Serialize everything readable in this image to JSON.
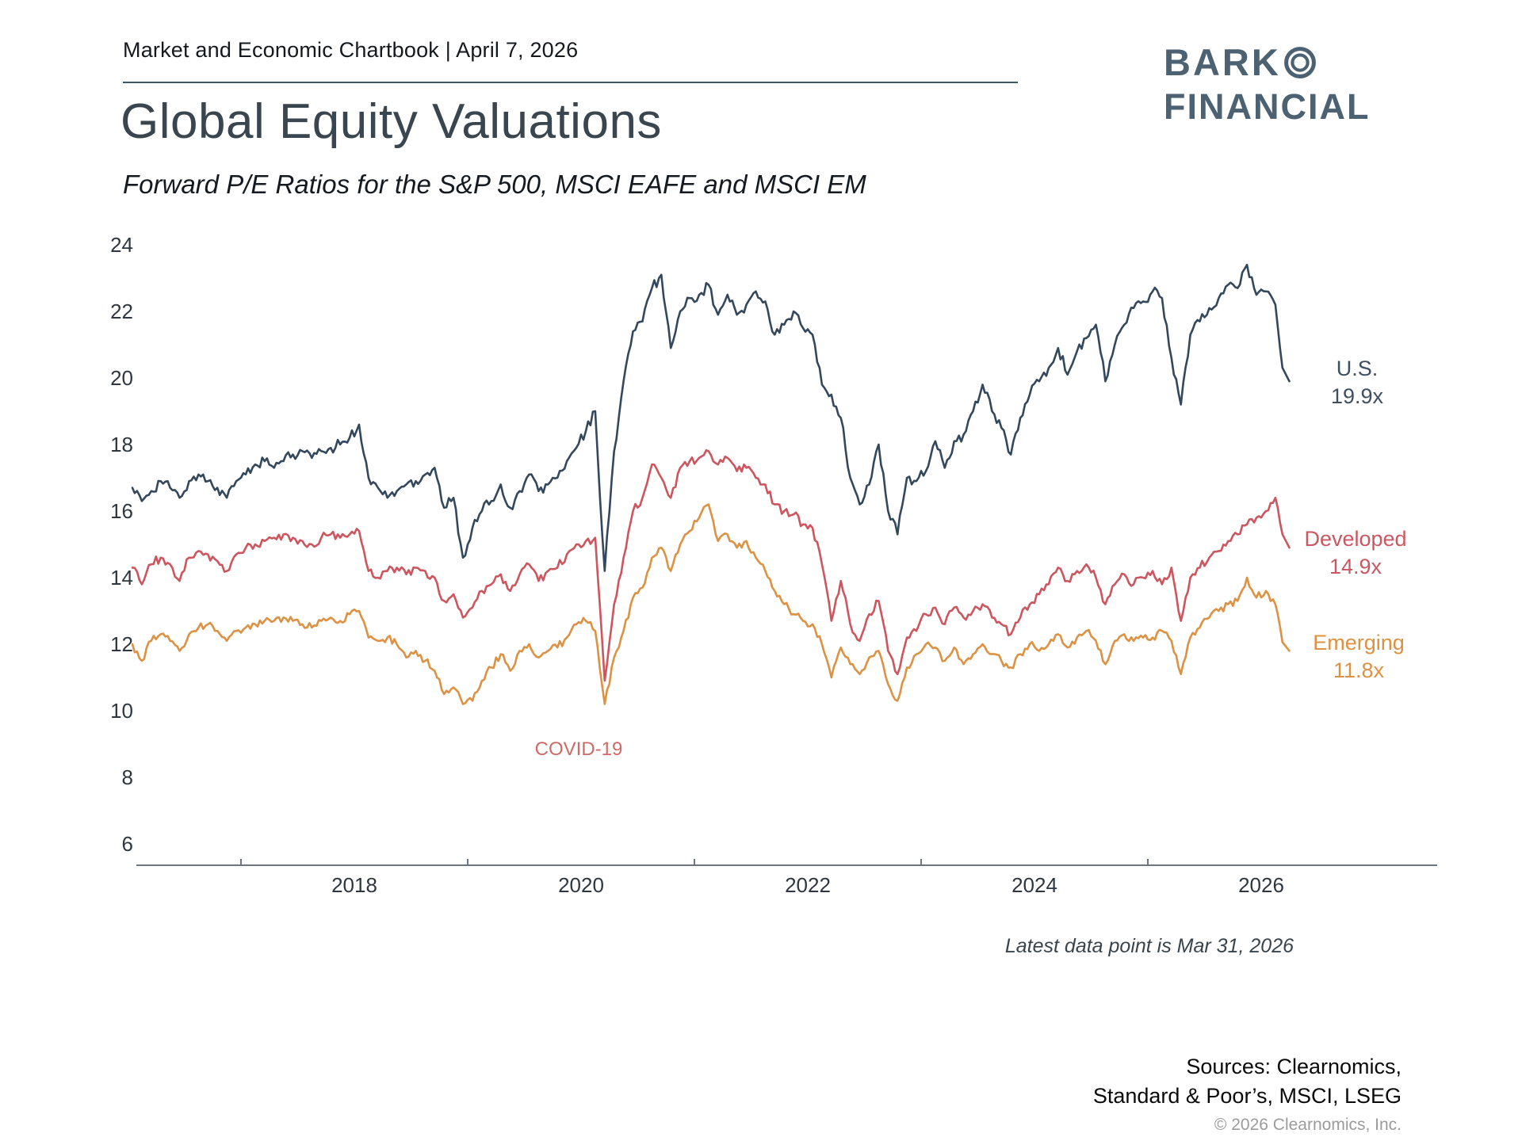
{
  "header": {
    "chartbook_label": "Market and Economic Chartbook | April 7, 2026"
  },
  "logo": {
    "line1": "BARK",
    "line2": "FINANCIAL",
    "color": "#4c6272",
    "ring_icon": "double-circle"
  },
  "title": "Global Equity Valuations",
  "subtitle": "Forward P/E Ratios for the S&P 500, MSCI EAFE and MSCI EM",
  "annotations": {
    "covid": "COVID-19",
    "latest_data": "Latest data point is Mar 31, 2026"
  },
  "footer": {
    "sources_line1": "Sources: Clearnomics,",
    "sources_line2": "Standard & Poor’s, MSCI, LSEG",
    "copyright": "© 2026 Clearnomics, Inc."
  },
  "chart_data": {
    "type": "line",
    "title": "Global Equity Valuations",
    "subtitle": "Forward P/E Ratios for the S&P 500, MSCI EAFE and MSCI EM",
    "x_unit": "monthly, Jan 2016 - Mar 2026",
    "x_start_year": 2016,
    "x_step_months": 1,
    "xticks": [
      2018,
      2020,
      2022,
      2024,
      2026
    ],
    "yticks": [
      24,
      22,
      20,
      18,
      16,
      14,
      12,
      10,
      8,
      6
    ],
    "ylim": [
      6,
      24
    ],
    "grid": false,
    "legend_position": "right-end-labels",
    "axis_color": "#6b7682",
    "series": [
      {
        "name": "U.S.",
        "end_label": "19.9x",
        "latest_value": 19.9,
        "color": "#33485c",
        "values": [
          16.7,
          16.3,
          16.6,
          16.9,
          16.7,
          16.4,
          16.9,
          17.1,
          16.9,
          16.7,
          16.4,
          16.9,
          17.1,
          17.4,
          17.5,
          17.3,
          17.5,
          17.7,
          17.8,
          17.6,
          17.8,
          17.9,
          18.0,
          18.2,
          18.6,
          17.0,
          16.7,
          16.4,
          16.6,
          16.8,
          16.9,
          17.1,
          17.3,
          16.1,
          16.4,
          14.6,
          15.5,
          16.0,
          16.3,
          16.8,
          16.1,
          16.6,
          17.1,
          16.6,
          16.8,
          17.0,
          17.5,
          17.9,
          18.4,
          19.0,
          14.2,
          17.8,
          19.9,
          21.4,
          21.7,
          22.7,
          23.1,
          20.9,
          22.0,
          22.4,
          22.5,
          22.8,
          21.9,
          22.5,
          21.9,
          22.2,
          22.6,
          22.3,
          21.3,
          21.6,
          22.0,
          21.5,
          21.3,
          19.8,
          19.5,
          18.8,
          17.0,
          16.2,
          16.8,
          18.0,
          16.0,
          15.3,
          17.0,
          16.9,
          17.2,
          18.1,
          17.3,
          18.1,
          18.3,
          19.0,
          19.8,
          19.0,
          18.5,
          17.7,
          18.8,
          19.5,
          19.9,
          20.3,
          20.9,
          20.1,
          20.8,
          21.2,
          21.6,
          19.9,
          21.0,
          21.6,
          22.1,
          22.3,
          22.6,
          22.4,
          20.6,
          19.2,
          21.3,
          21.7,
          22.1,
          22.4,
          22.8,
          22.7,
          23.4,
          22.5,
          22.6,
          22.2,
          19.9
        ]
      },
      {
        "name": "Developed",
        "end_label": "14.9x",
        "latest_value": 14.9,
        "color": "#cc555e",
        "values": [
          14.3,
          13.8,
          14.4,
          14.6,
          14.4,
          13.9,
          14.6,
          14.8,
          14.7,
          14.5,
          14.2,
          14.7,
          14.9,
          15.0,
          15.1,
          15.2,
          15.3,
          15.2,
          15.1,
          15.0,
          15.2,
          15.3,
          15.2,
          15.3,
          15.4,
          14.2,
          14.0,
          14.2,
          14.3,
          14.1,
          14.3,
          14.2,
          14.0,
          13.3,
          13.5,
          12.8,
          13.1,
          13.6,
          13.8,
          14.1,
          13.6,
          14.1,
          14.4,
          13.9,
          14.2,
          14.3,
          14.7,
          15.0,
          15.1,
          15.2,
          10.9,
          13.2,
          14.6,
          16.0,
          16.4,
          17.4,
          17.0,
          16.4,
          17.3,
          17.5,
          17.6,
          17.8,
          17.4,
          17.6,
          17.2,
          17.3,
          17.0,
          16.8,
          16.2,
          16.0,
          15.9,
          15.6,
          15.5,
          14.4,
          12.7,
          13.9,
          12.6,
          12.1,
          12.9,
          13.3,
          11.8,
          11.1,
          12.2,
          12.4,
          12.9,
          13.1,
          12.6,
          13.1,
          12.8,
          13.0,
          13.2,
          12.8,
          12.6,
          12.3,
          12.8,
          13.2,
          13.5,
          13.8,
          14.3,
          13.9,
          14.2,
          14.4,
          14.0,
          13.2,
          13.8,
          14.1,
          13.8,
          14.0,
          14.2,
          13.8,
          14.3,
          12.7,
          14.0,
          14.3,
          14.6,
          14.8,
          15.1,
          15.3,
          15.6,
          15.8,
          16.0,
          16.4,
          14.9
        ]
      },
      {
        "name": "Emerging",
        "end_label": "11.8x",
        "latest_value": 11.8,
        "color": "#dd9143",
        "values": [
          12.0,
          11.5,
          12.1,
          12.3,
          12.1,
          11.8,
          12.3,
          12.5,
          12.6,
          12.4,
          12.1,
          12.4,
          12.5,
          12.6,
          12.7,
          12.7,
          12.8,
          12.7,
          12.6,
          12.5,
          12.7,
          12.8,
          12.7,
          12.9,
          13.0,
          12.2,
          12.1,
          12.2,
          12.0,
          11.6,
          11.8,
          11.5,
          11.2,
          10.5,
          10.7,
          10.2,
          10.3,
          10.9,
          11.3,
          11.7,
          11.2,
          11.8,
          12.0,
          11.6,
          11.8,
          11.9,
          12.2,
          12.6,
          12.7,
          12.4,
          10.2,
          11.6,
          12.4,
          13.4,
          13.7,
          14.6,
          14.9,
          14.2,
          15.0,
          15.4,
          15.8,
          16.2,
          15.1,
          15.3,
          14.9,
          15.1,
          14.6,
          14.2,
          13.6,
          13.2,
          12.9,
          12.7,
          12.6,
          12.0,
          11.0,
          11.9,
          11.4,
          11.1,
          11.6,
          11.8,
          10.8,
          10.3,
          11.3,
          11.7,
          12.0,
          11.9,
          11.5,
          11.9,
          11.4,
          11.7,
          12.0,
          11.7,
          11.5,
          11.3,
          11.7,
          12.0,
          11.8,
          12.0,
          12.3,
          11.9,
          12.2,
          12.4,
          12.1,
          11.4,
          12.1,
          12.3,
          12.1,
          12.2,
          12.2,
          12.4,
          12.1,
          11.1,
          12.2,
          12.5,
          12.8,
          13.0,
          13.2,
          13.3,
          14.0,
          13.4,
          13.6,
          13.2,
          11.8
        ]
      }
    ],
    "annotations": [
      {
        "text": "COVID-19",
        "x_year": 2020.2,
        "y_value": 8.8
      }
    ]
  }
}
